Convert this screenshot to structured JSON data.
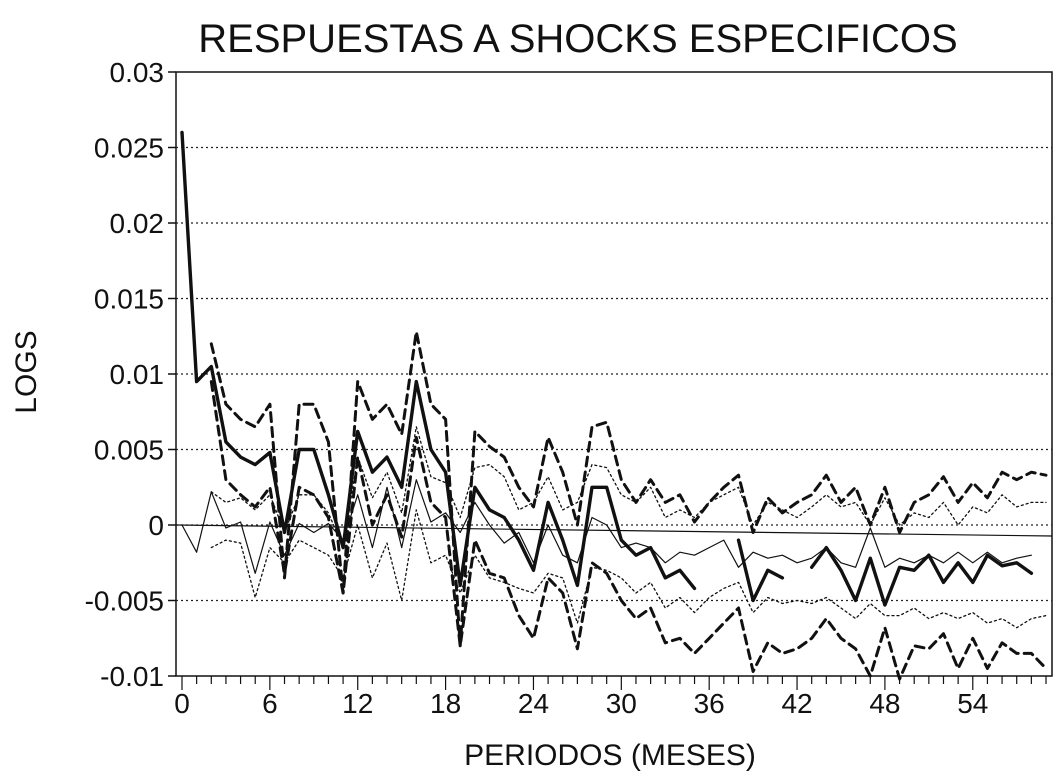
{
  "chart_data": {
    "type": "line",
    "title": "RESPUESTAS A SHOCKS ESPECIFICOS",
    "xlabel": "PERIODOS (MESES)",
    "ylabel": "LOGS",
    "xlim": [
      0,
      59
    ],
    "ylim": [
      -0.01,
      0.03
    ],
    "x_ticks": [
      0,
      6,
      12,
      18,
      24,
      30,
      36,
      42,
      48,
      54
    ],
    "y_ticks": [
      0.03,
      0.025,
      0.02,
      0.015,
      0.01,
      0.005,
      0,
      -0.005,
      -0.01
    ],
    "y_tick_labels": [
      "0.03",
      "0.025",
      "0.02",
      "0.015",
      "0.01",
      "0.005",
      "0",
      "-0.005",
      "-0.01"
    ],
    "x_tick_labels": [
      "0",
      "6",
      "12",
      "18",
      "24",
      "30",
      "36",
      "42",
      "48",
      "54"
    ],
    "grid": "horizontal-dotted",
    "series": [
      {
        "style": "thick-solid",
        "color": "#111111",
        "values": [
          0.026,
          0.0095,
          0.0105,
          0.0055,
          0.0045,
          0.004,
          0.0048,
          -0.0005,
          0.005,
          0.005,
          0.002,
          -0.0015,
          0.0062,
          0.0035,
          0.0045,
          0.0025,
          0.0095,
          0.005,
          0.0035,
          -0.004,
          0.0025,
          0.001,
          0.0005,
          -0.001,
          -0.003,
          0.0015,
          -0.001,
          -0.004,
          0.0025,
          0.0025,
          -0.001,
          -0.002,
          -0.0015,
          -0.0035,
          -0.003,
          -0.0042,
          null,
          null,
          -0.001,
          -0.005,
          -0.003,
          -0.0035,
          null,
          -0.0028,
          -0.0015,
          -0.003,
          -0.005,
          -0.0022,
          -0.0053,
          -0.0028,
          -0.003,
          -0.002,
          -0.0038,
          -0.0025,
          -0.0038,
          -0.002,
          -0.0027,
          -0.0025,
          -0.0032
        ]
      },
      {
        "style": "thin-solid",
        "color": "#111111",
        "values": [
          0,
          -0.0018,
          0.0022,
          -0.0002,
          0.0002,
          -0.0032,
          0.0002,
          -0.002,
          0.0001,
          -0.0005,
          0.0001,
          -0.001,
          0.002,
          -0.0015,
          0.0025,
          -0.0015,
          0.003,
          0.0002,
          0.0008,
          -0.0005,
          0.0015,
          0.0,
          -0.0012,
          -0.0005,
          -0.0025,
          0.0,
          -0.002,
          -0.0025,
          0.0005,
          0.0,
          -0.0015,
          -0.0012,
          -0.0015,
          -0.0025,
          -0.0018,
          -0.002,
          -0.0015,
          -0.001,
          -0.0028,
          -0.0018,
          -0.0022,
          -0.002,
          -0.0025,
          -0.0022,
          -0.0015,
          -0.0025,
          -0.0028,
          -0.0002,
          -0.0028,
          -0.0022,
          -0.0025,
          -0.002,
          -0.0025,
          -0.0018,
          -0.0025,
          -0.0018,
          -0.0025,
          -0.0022,
          -0.002
        ]
      },
      {
        "style": "thick-dashed",
        "color": "#111111",
        "values": [
          null,
          null,
          0.012,
          0.008,
          0.007,
          0.0065,
          0.008,
          -0.0035,
          0.008,
          0.008,
          0.0055,
          -0.0045,
          0.0095,
          0.007,
          0.008,
          0.006,
          0.0128,
          0.008,
          0.007,
          -0.008,
          0.0062,
          0.0052,
          0.0045,
          0.0025,
          0.0012,
          0.0058,
          0.0035,
          0.0,
          0.0065,
          0.0068,
          0.003,
          0.0015,
          0.003,
          0.0015,
          0.002,
          0.0002,
          0.0015,
          0.0025,
          0.0033,
          -0.0005,
          0.0018,
          0.0008,
          0.0015,
          0.002,
          0.0033,
          0.0015,
          0.0025,
          0.0,
          0.0025,
          -0.0005,
          0.0015,
          0.002,
          0.0032,
          0.0015,
          0.0028,
          0.0018,
          0.0035,
          0.003,
          0.0035,
          0.0033
        ]
      },
      {
        "style": "thick-dashed",
        "color": "#111111",
        "values": [
          null,
          null,
          0.0095,
          0.003,
          0.002,
          0.0012,
          0.0025,
          -0.0032,
          0.0025,
          0.002,
          0.0005,
          -0.0045,
          0.0045,
          0.0,
          0.002,
          -0.0008,
          0.0058,
          0.0015,
          0.0005,
          -0.008,
          -0.001,
          -0.0032,
          -0.0035,
          -0.006,
          -0.0075,
          -0.0035,
          -0.0045,
          -0.0082,
          -0.0025,
          -0.0032,
          -0.005,
          -0.0062,
          -0.0055,
          -0.0078,
          -0.0075,
          -0.0085,
          -0.0075,
          -0.0065,
          -0.0055,
          -0.0097,
          -0.0078,
          -0.0085,
          -0.0082,
          -0.0075,
          -0.0062,
          -0.0075,
          -0.0082,
          -0.01,
          -0.0068,
          -0.0102,
          -0.008,
          -0.0082,
          -0.0072,
          -0.0095,
          -0.0075,
          -0.0095,
          -0.0078,
          -0.0085,
          -0.0085,
          -0.0095
        ]
      },
      {
        "style": "thin-dotted",
        "color": "#111111",
        "values": [
          null,
          null,
          0.0022,
          0.0015,
          0.0018,
          0.001,
          0.002,
          -0.0005,
          0.002,
          0.002,
          0.0008,
          -0.0015,
          0.0045,
          0.0018,
          0.0035,
          0.0008,
          0.0065,
          0.0032,
          0.0028,
          0.0005,
          0.0038,
          0.004,
          0.0032,
          0.001,
          0.0015,
          0.0032,
          0.001,
          0.0015,
          0.004,
          0.0038,
          0.002,
          0.0015,
          0.0025,
          0.0005,
          0.001,
          0.0005,
          0.0015,
          0.002,
          0.0025,
          0.0,
          0.0015,
          0.001,
          0.0005,
          0.0012,
          0.002,
          0.0012,
          0.0015,
          0.0,
          0.0018,
          0.0,
          0.0008,
          0.0005,
          0.0015,
          0.0,
          0.0012,
          0.0008,
          0.002,
          0.0012,
          0.0015,
          0.0015
        ]
      },
      {
        "style": "thin-dotted",
        "color": "#111111",
        "values": [
          null,
          null,
          -0.0015,
          -0.001,
          -0.0012,
          -0.0048,
          -0.0015,
          -0.0025,
          -0.001,
          -0.0015,
          -0.002,
          -0.0035,
          0.0,
          -0.0035,
          -0.0012,
          -0.005,
          0.001,
          -0.0025,
          -0.002,
          -0.0045,
          -0.002,
          -0.0035,
          -0.0038,
          -0.0042,
          -0.0045,
          -0.0032,
          -0.0035,
          -0.0065,
          -0.0028,
          -0.003,
          -0.0035,
          -0.0045,
          -0.0038,
          -0.0055,
          -0.0048,
          -0.0058,
          -0.0048,
          -0.0042,
          -0.0038,
          -0.0058,
          -0.0048,
          -0.0052,
          -0.005,
          -0.0052,
          -0.0048,
          -0.0055,
          -0.0062,
          -0.0052,
          -0.006,
          -0.006,
          -0.0055,
          -0.0062,
          -0.0058,
          -0.0062,
          -0.0058,
          -0.0065,
          -0.0062,
          -0.0068,
          -0.0062,
          -0.006
        ]
      }
    ],
    "zero_line": true
  }
}
